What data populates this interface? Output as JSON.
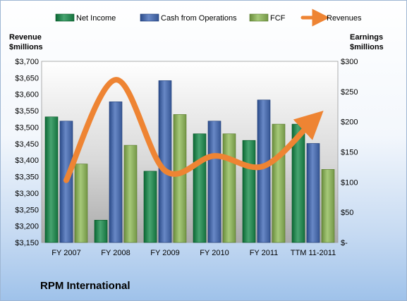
{
  "company_label": "RPM International",
  "chart_data": {
    "type": "bar",
    "categories": [
      "FY 2007",
      "FY 2008",
      "FY 2009",
      "FY 2010",
      "FY 2011",
      "TTM 11-2011"
    ],
    "series": [
      {
        "name": "Net Income",
        "axis": "right",
        "values": [
          208,
          37,
          118,
          180,
          169,
          196
        ],
        "color": "#2e8b57"
      },
      {
        "name": "Cash from Operations",
        "axis": "right",
        "values": [
          201,
          233,
          268,
          201,
          236,
          164
        ],
        "color": "#4f6fad"
      },
      {
        "name": "FCF",
        "axis": "right",
        "values": [
          130,
          161,
          212,
          180,
          196,
          121
        ],
        "color": "#8db060"
      },
      {
        "name": "Revenues",
        "axis": "left",
        "type": "line",
        "values": [
          3339,
          3644,
          3368,
          3413,
          3382,
          3521
        ],
        "color": "#ee8433"
      }
    ],
    "left_axis": {
      "title_line1": "Revenue",
      "title_line2": "$millions",
      "range": [
        3150,
        3700
      ],
      "ticks": [
        "$3,150",
        "$3,200",
        "$3,250",
        "$3,300",
        "$3,350",
        "$3,400",
        "$3,450",
        "$3,500",
        "$3,550",
        "$3,600",
        "$3,650",
        "$3,700"
      ]
    },
    "right_axis": {
      "title_line1": "Earnings",
      "title_line2": "$millions",
      "range": [
        0,
        300
      ],
      "ticks": [
        "$-",
        "$50",
        "$100",
        "$150",
        "$200",
        "$250",
        "$300"
      ]
    },
    "legend_position": "top",
    "grid": false
  }
}
